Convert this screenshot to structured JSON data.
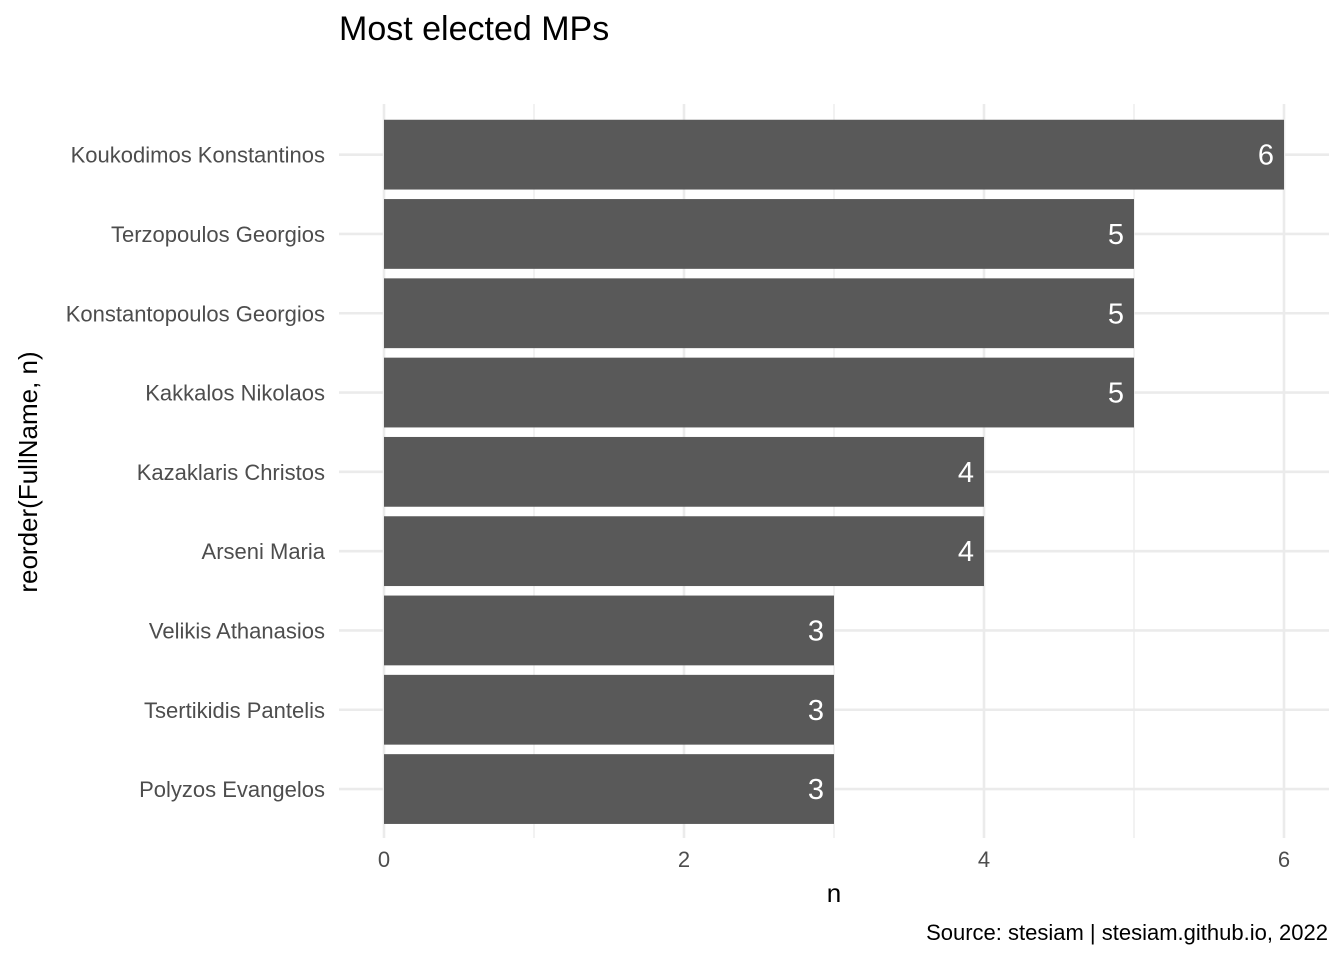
{
  "chart_data": {
    "type": "bar",
    "orientation": "horizontal",
    "title": "Most elected MPs",
    "xlabel": "n",
    "ylabel": "reorder(FullName, n)",
    "caption": "Source: stesiam | stesiam.github.io, 2022",
    "categories": [
      "Koukodimos Konstantinos",
      "Terzopoulos Georgios",
      "Konstantopoulos Georgios",
      "Kakkalos Nikolaos",
      "Kazaklaris Christos",
      "Arseni Maria",
      "Velikis Athanasios",
      "Tsertikidis Pantelis",
      "Polyzos Evangelos"
    ],
    "values": [
      6,
      5,
      5,
      5,
      4,
      4,
      3,
      3,
      3
    ],
    "data_labels": [
      "6",
      "5",
      "5",
      "5",
      "4",
      "4",
      "3",
      "3",
      "3"
    ],
    "xlim": [
      0,
      6
    ],
    "xticks": [
      0,
      2,
      4,
      6
    ],
    "xtick_labels": [
      "0",
      "2",
      "4",
      "6"
    ],
    "grid": true,
    "bar_color": "#595959",
    "grid_color": "#ebebeb"
  }
}
